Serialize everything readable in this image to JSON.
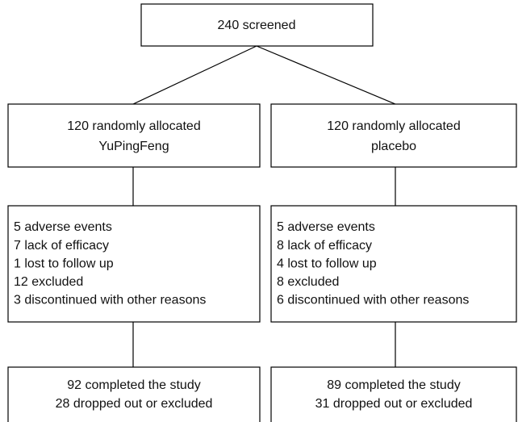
{
  "screened": "240 screened",
  "arms": [
    {
      "allocated": [
        "120 randomly allocated",
        "YuPingFeng"
      ],
      "reasons": [
        "5 adverse events",
        "7 lack of efficacy",
        "1 lost to follow up",
        "12 excluded",
        "3 discontinued with other reasons"
      ],
      "completed": [
        "92 completed the study",
        "28 dropped out or excluded"
      ]
    },
    {
      "allocated": [
        "120 randomly allocated",
        "placebo"
      ],
      "reasons": [
        "5 adverse events",
        "8 lack of efficacy",
        "4 lost to follow up",
        "8 excluded",
        "6 discontinued with other reasons"
      ],
      "completed": [
        "89 completed the study",
        "31 dropped out or excluded"
      ]
    }
  ]
}
